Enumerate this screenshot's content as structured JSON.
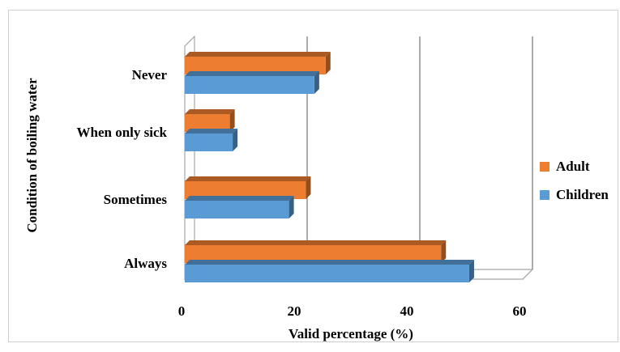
{
  "chart_data": {
    "type": "bar",
    "orientation": "horizontal",
    "style": "3d-clustered",
    "categories": [
      "Always",
      "Sometimes",
      "When only sick",
      "Never"
    ],
    "series": [
      {
        "name": "Adult",
        "color": "#ED7D31",
        "values": [
          45.5,
          21.5,
          8.0,
          25.0
        ]
      },
      {
        "name": "Children",
        "color": "#5B9BD5",
        "values": [
          50.5,
          18.5,
          8.5,
          23.0
        ]
      }
    ],
    "xlabel": "Valid percentage (%)",
    "ylabel": "Condition of boiling water",
    "xlim": [
      0,
      60
    ],
    "xticks": [
      0,
      20,
      40,
      60
    ],
    "grid": "vertical",
    "legend_position": "right"
  }
}
